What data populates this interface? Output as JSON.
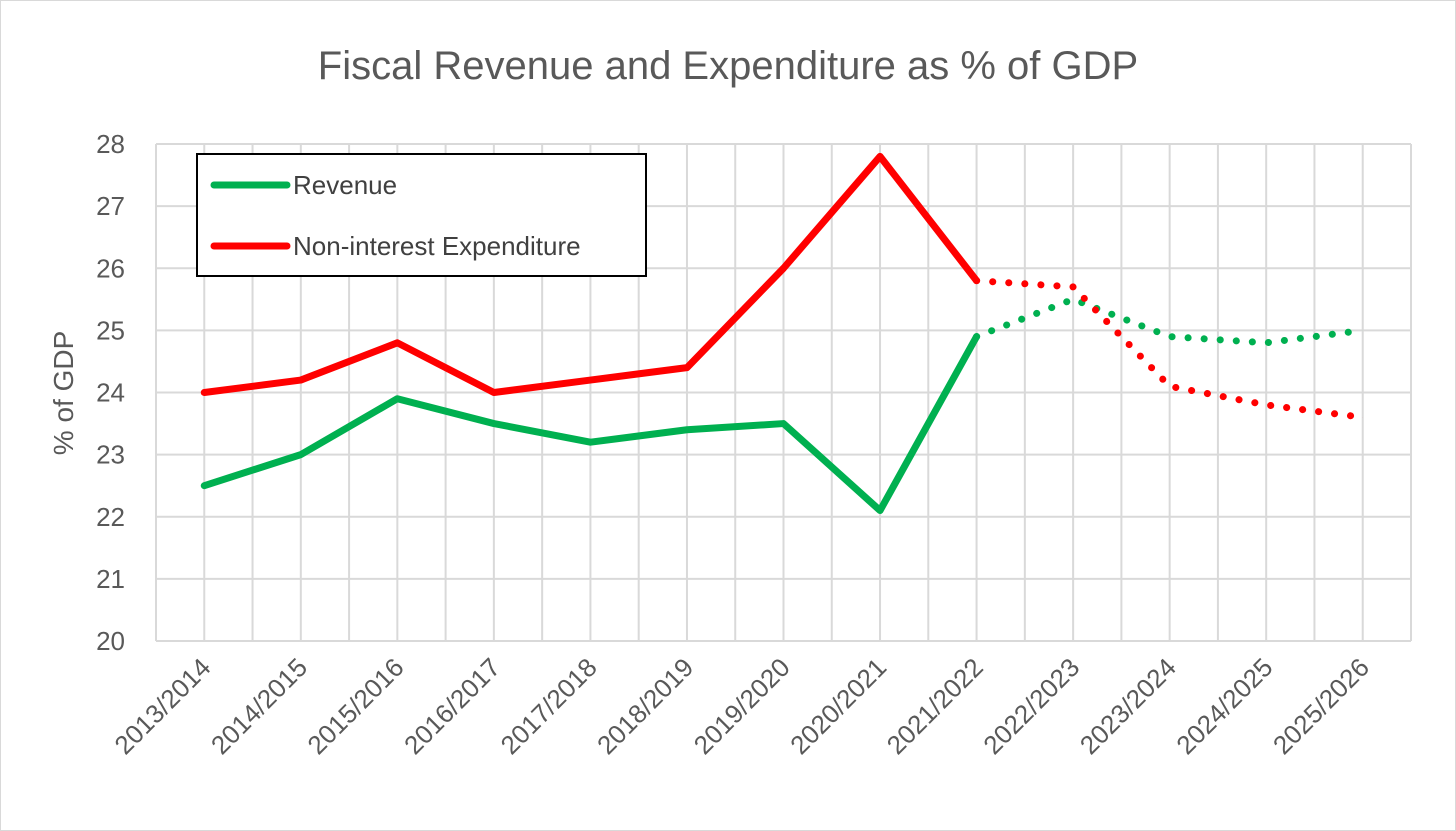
{
  "chart_data": {
    "type": "line",
    "title": "Fiscal Revenue and Expenditure as % of GDP",
    "xlabel": "",
    "ylabel": "% of GDP",
    "ylim": [
      20,
      28
    ],
    "yticks": [
      20,
      21,
      22,
      23,
      24,
      25,
      26,
      27,
      28
    ],
    "grid": true,
    "legend_position": "top-left",
    "categories": [
      "2013/2014",
      "2014/2015",
      "2015/2016",
      "2016/2017",
      "2017/2018",
      "2018/2019",
      "2019/2020",
      "2020/2021",
      "2021/2022",
      "2022/2023",
      "2023/2024",
      "2024/2025",
      "2025/2026"
    ],
    "projection_start": "2021/2022",
    "series": [
      {
        "name": "Revenue",
        "color": "#00b050",
        "values": [
          22.5,
          23.0,
          23.9,
          23.5,
          23.2,
          23.4,
          23.5,
          22.1,
          24.9,
          25.5,
          24.9,
          24.8,
          25.0
        ]
      },
      {
        "name": "Non-interest Expenditure",
        "color": "#ff0000",
        "values": [
          24.0,
          24.2,
          24.8,
          24.0,
          24.2,
          24.4,
          26.0,
          27.8,
          25.8,
          25.7,
          24.1,
          23.8,
          23.6
        ]
      }
    ]
  }
}
